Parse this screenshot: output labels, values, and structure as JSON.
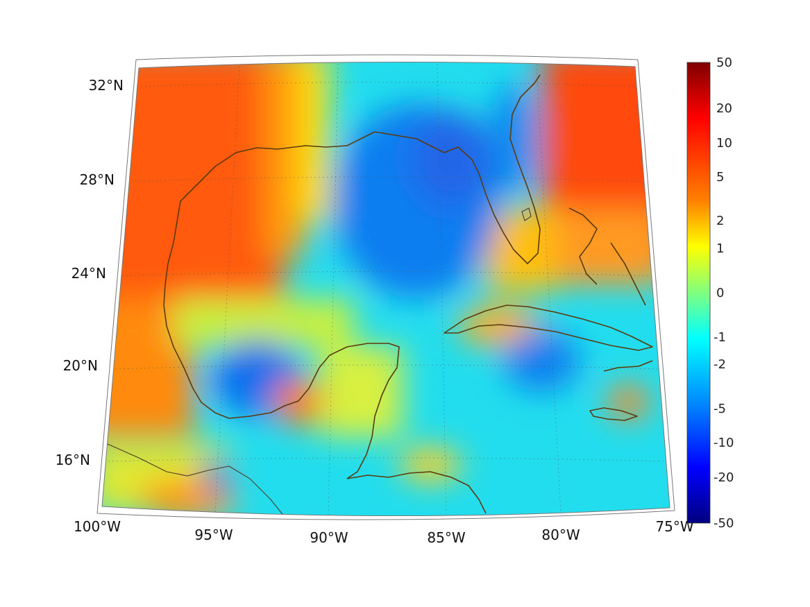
{
  "map": {
    "region": "Gulf of Mexico and Caribbean",
    "lon_range": [
      -100,
      -75
    ],
    "lat_range": [
      14,
      33
    ],
    "lon_tick_labels": [
      "100°W",
      "95°W",
      "90°W",
      "85°W",
      "80°W",
      "75°W"
    ],
    "lat_tick_labels": [
      "32°N",
      "28°N",
      "24°N",
      "20°N",
      "16°N"
    ],
    "coastline_color": "#5a3a0e",
    "colormap": "jet"
  },
  "colorbar": {
    "tick_labels": [
      "50",
      "20",
      "10",
      "5",
      "2",
      "1",
      "0",
      "-1",
      "-2",
      "-5",
      "-10",
      "-20",
      "-50"
    ],
    "colors": [
      "#800000",
      "#ff0000",
      "#ff8000",
      "#ffff00",
      "#00ffff",
      "#0080ff",
      "#0000ff",
      "#000080"
    ]
  },
  "chart_data": {
    "type": "heatmap",
    "title": "",
    "xlabel": "",
    "ylabel": "",
    "xlim": [
      -100,
      -75
    ],
    "ylim": [
      14,
      33
    ],
    "color_scale_ticks": [
      50,
      20,
      10,
      5,
      2,
      1,
      0,
      -1,
      -2,
      -5,
      -10,
      -20,
      -50
    ],
    "color_range": [
      -50,
      50
    ]
  }
}
